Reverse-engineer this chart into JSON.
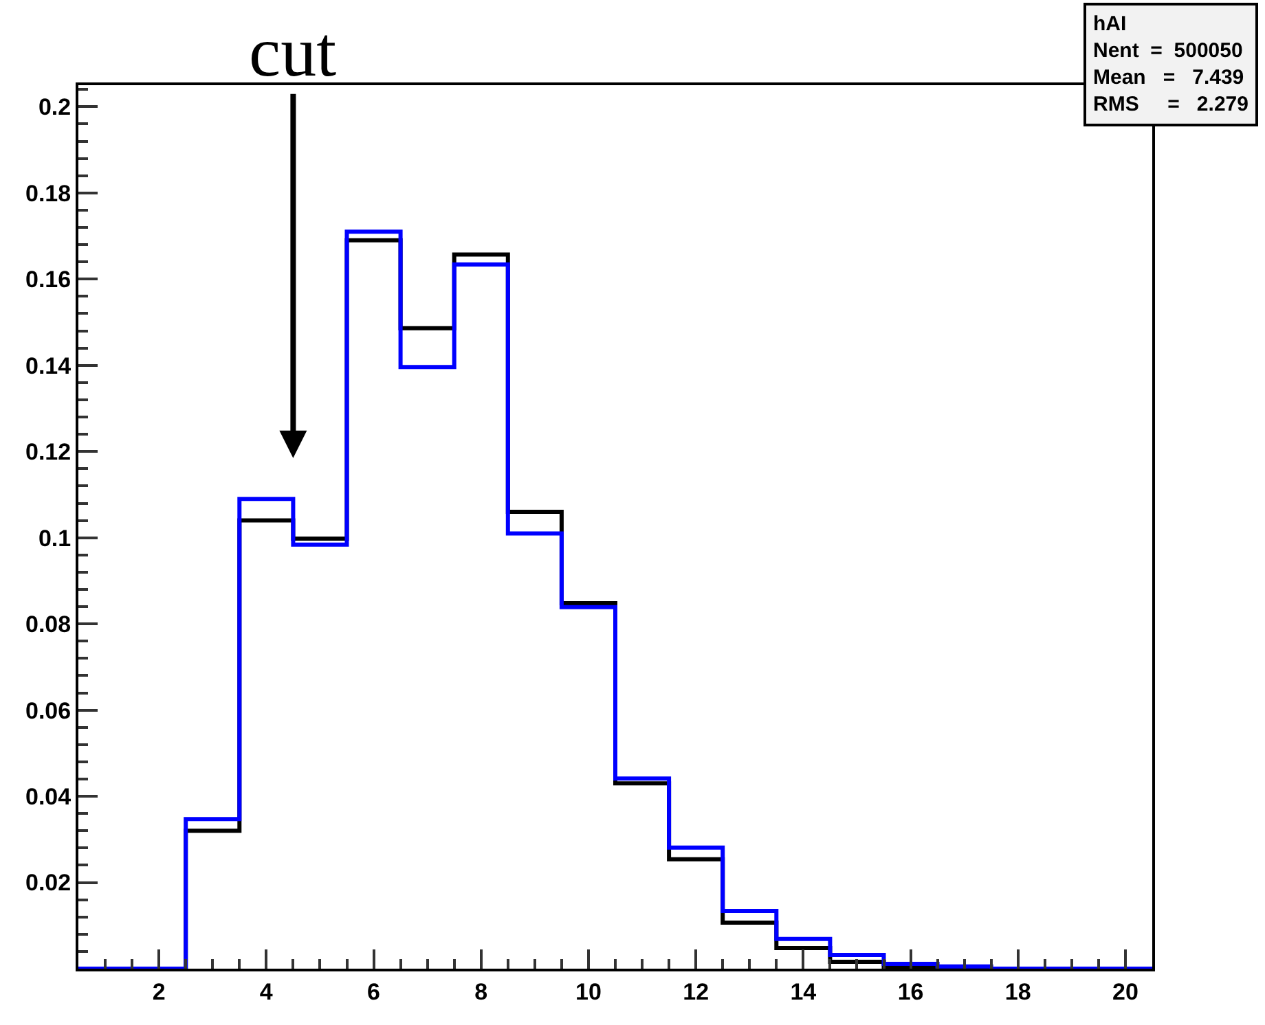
{
  "chart_data": {
    "type": "histogram",
    "bins": [
      0.5,
      1.5,
      2.5,
      3.5,
      4.5,
      5.5,
      6.5,
      7.5,
      8.5,
      9.5,
      10.5,
      11.5,
      12.5,
      13.5,
      14.5,
      15.5,
      16.5,
      17.5,
      18.5,
      19.5,
      20.5
    ],
    "series": [
      {
        "color": "#000000",
        "values": [
          0,
          0,
          0.032,
          0.104,
          0.0998,
          0.169,
          0.1486,
          0.1657,
          0.106,
          0.0848,
          0.043,
          0.0254,
          0.0107,
          0.0048,
          0.0016,
          0.0003,
          0,
          0,
          0,
          0
        ]
      },
      {
        "color": "#0000ff",
        "values": [
          0,
          0,
          0.0347,
          0.109,
          0.0984,
          0.171,
          0.1396,
          0.1634,
          0.101,
          0.0839,
          0.0441,
          0.0281,
          0.0134,
          0.0069,
          0.0032,
          0.0011,
          0.0005,
          0,
          0,
          0
        ]
      }
    ],
    "xlim": [
      0.5,
      20.5
    ],
    "xticks": [
      2,
      4,
      6,
      8,
      10,
      12,
      14,
      16,
      18,
      20
    ],
    "ylim": [
      0,
      0.205
    ],
    "yticks": [
      0.02,
      0.04,
      0.06,
      0.08,
      0.1,
      0.12,
      0.14,
      0.16,
      0.18,
      0.2
    ],
    "annotations": [
      "cut",
      "hAI",
      "Nent  =  500050",
      "Mean   =   7.439",
      "RMS     =   2.279"
    ]
  }
}
